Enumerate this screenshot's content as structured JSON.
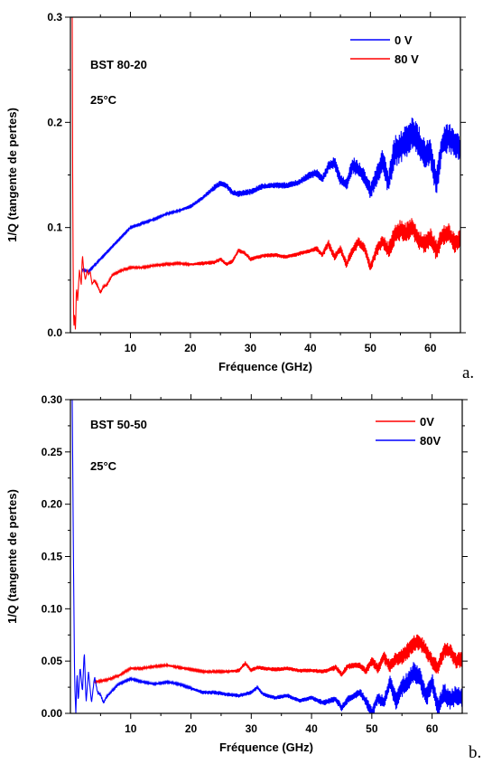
{
  "chart_data": [
    {
      "type": "line",
      "panel_label": "a.",
      "xlabel": "Fréquence (GHz)",
      "ylabel": "1/Q (tangente de pertes)",
      "xlim": [
        0,
        65
      ],
      "ylim": [
        0,
        0.3
      ],
      "x_ticks": [
        10,
        20,
        30,
        40,
        50,
        60
      ],
      "x_tick_labels": [
        "10",
        "20",
        "30",
        "40",
        "50",
        "60"
      ],
      "y_ticks": [
        0,
        0.1,
        0.2,
        0.3
      ],
      "y_tick_labels": [
        "0.0",
        "0.1",
        "0.2",
        "0.3"
      ],
      "annotations": [
        "BST 80-20",
        "25°C"
      ],
      "legend_position": "top-right",
      "series": [
        {
          "name": "0 V",
          "color": "#0000ff",
          "x": [
            2,
            3,
            4,
            5,
            6,
            8,
            10,
            12,
            14,
            16,
            18,
            20,
            22,
            24,
            25,
            26,
            27,
            28,
            30,
            32,
            34,
            36,
            38,
            40,
            41,
            42,
            43,
            44,
            45,
            46,
            47,
            48,
            49,
            50,
            51,
            52,
            53,
            54,
            55,
            56,
            57,
            58,
            59,
            60,
            61,
            62,
            63,
            64,
            65
          ],
          "y": [
            0.06,
            0.058,
            0.064,
            0.07,
            0.076,
            0.088,
            0.1,
            0.104,
            0.108,
            0.113,
            0.116,
            0.12,
            0.128,
            0.138,
            0.142,
            0.14,
            0.133,
            0.132,
            0.134,
            0.139,
            0.14,
            0.14,
            0.143,
            0.15,
            0.152,
            0.146,
            0.158,
            0.162,
            0.146,
            0.14,
            0.16,
            0.155,
            0.148,
            0.135,
            0.148,
            0.165,
            0.142,
            0.172,
            0.176,
            0.182,
            0.19,
            0.182,
            0.17,
            0.172,
            0.142,
            0.18,
            0.186,
            0.18,
            0.175
          ],
          "noise": [
            0.001,
            0.001,
            0.001,
            0.001,
            0.001,
            0.001,
            0.001,
            0.001,
            0.001,
            0.001,
            0.001,
            0.002,
            0.002,
            0.003,
            0.003,
            0.003,
            0.003,
            0.003,
            0.003,
            0.003,
            0.003,
            0.003,
            0.003,
            0.004,
            0.004,
            0.004,
            0.005,
            0.006,
            0.006,
            0.006,
            0.008,
            0.008,
            0.008,
            0.008,
            0.01,
            0.012,
            0.012,
            0.015,
            0.016,
            0.016,
            0.016,
            0.016,
            0.014,
            0.014,
            0.014,
            0.014,
            0.014,
            0.014,
            0.014
          ]
        },
        {
          "name": "80 V",
          "color": "#ff0000",
          "x": [
            0.3,
            0.4,
            0.55,
            0.7,
            0.85,
            1.0,
            1.2,
            1.5,
            1.8,
            2.0,
            2.2,
            2.5,
            2.8,
            3.0,
            3.3,
            3.6,
            4.0,
            4.5,
            5.0,
            5.5,
            6.0,
            7.0,
            8.0,
            10,
            12,
            14,
            16,
            18,
            20,
            22,
            24,
            25,
            26,
            27,
            28,
            29,
            30,
            32,
            34,
            36,
            38,
            40,
            41,
            42,
            43,
            44,
            45,
            46,
            47,
            48,
            49,
            50,
            51,
            52,
            53,
            54,
            55,
            56,
            57,
            58,
            59,
            60,
            61,
            62,
            63,
            64,
            65
          ],
          "y": [
            0.3,
            0.1,
            0.0,
            0.02,
            0.0,
            0.045,
            0.03,
            0.06,
            0.045,
            0.075,
            0.06,
            0.05,
            0.06,
            0.055,
            0.058,
            0.046,
            0.05,
            0.045,
            0.038,
            0.044,
            0.045,
            0.055,
            0.058,
            0.062,
            0.062,
            0.064,
            0.065,
            0.066,
            0.065,
            0.066,
            0.067,
            0.07,
            0.065,
            0.068,
            0.078,
            0.076,
            0.07,
            0.073,
            0.074,
            0.072,
            0.075,
            0.078,
            0.08,
            0.074,
            0.085,
            0.072,
            0.08,
            0.065,
            0.078,
            0.086,
            0.08,
            0.062,
            0.078,
            0.087,
            0.078,
            0.092,
            0.098,
            0.095,
            0.101,
            0.088,
            0.085,
            0.09,
            0.078,
            0.092,
            0.095,
            0.085,
            0.088
          ],
          "noise": [
            0,
            0,
            0,
            0,
            0,
            0,
            0,
            0,
            0,
            0,
            0,
            0,
            0,
            0,
            0,
            0,
            0.001,
            0.001,
            0.001,
            0.001,
            0.001,
            0.001,
            0.001,
            0.001,
            0.001,
            0.001,
            0.001,
            0.001,
            0.001,
            0.002,
            0.002,
            0.002,
            0.002,
            0.002,
            0.002,
            0.002,
            0.002,
            0.002,
            0.002,
            0.002,
            0.002,
            0.002,
            0.003,
            0.003,
            0.004,
            0.004,
            0.004,
            0.004,
            0.005,
            0.005,
            0.005,
            0.005,
            0.006,
            0.007,
            0.008,
            0.01,
            0.01,
            0.01,
            0.01,
            0.01,
            0.01,
            0.01,
            0.01,
            0.01,
            0.01,
            0.01,
            0.01
          ]
        }
      ]
    },
    {
      "type": "line",
      "panel_label": "b.",
      "xlabel": "Fréquence (GHz)",
      "ylabel": "1/Q (tangente de pertes)",
      "xlim": [
        0,
        65
      ],
      "ylim": [
        0,
        0.3
      ],
      "x_ticks": [
        10,
        20,
        30,
        40,
        50,
        60
      ],
      "x_tick_labels": [
        "10",
        "20",
        "30",
        "40",
        "50",
        "60"
      ],
      "y_ticks": [
        0,
        0.05,
        0.1,
        0.15,
        0.2,
        0.25,
        0.3
      ],
      "y_tick_labels": [
        "0.00",
        "0.05",
        "0.10",
        "0.15",
        "0.20",
        "0.25",
        "0.30"
      ],
      "annotations": [
        "BST 50-50",
        "25°C"
      ],
      "legend_position": "top-right",
      "series": [
        {
          "name": "0V",
          "color": "#ff0000",
          "x": [
            4,
            6,
            8,
            10,
            12,
            14,
            16,
            18,
            20,
            22,
            24,
            26,
            28,
            29,
            30,
            31,
            32,
            34,
            36,
            38,
            40,
            42,
            44,
            45,
            46,
            48,
            49,
            50,
            51,
            52,
            53,
            54,
            55,
            56,
            57,
            58,
            59,
            60,
            61,
            62,
            63,
            64,
            65
          ],
          "y": [
            0.03,
            0.032,
            0.036,
            0.043,
            0.043,
            0.045,
            0.046,
            0.044,
            0.042,
            0.04,
            0.04,
            0.04,
            0.041,
            0.048,
            0.041,
            0.044,
            0.043,
            0.042,
            0.043,
            0.041,
            0.041,
            0.04,
            0.044,
            0.037,
            0.045,
            0.046,
            0.04,
            0.05,
            0.043,
            0.054,
            0.045,
            0.052,
            0.054,
            0.06,
            0.067,
            0.068,
            0.06,
            0.05,
            0.044,
            0.06,
            0.06,
            0.05,
            0.052
          ],
          "noise": [
            0.001,
            0.001,
            0.001,
            0.001,
            0.001,
            0.001,
            0.001,
            0.001,
            0.001,
            0.001,
            0.001,
            0.001,
            0.002,
            0.002,
            0.002,
            0.002,
            0.002,
            0.002,
            0.002,
            0.002,
            0.002,
            0.002,
            0.003,
            0.003,
            0.003,
            0.003,
            0.004,
            0.005,
            0.005,
            0.006,
            0.006,
            0.007,
            0.008,
            0.008,
            0.008,
            0.008,
            0.008,
            0.008,
            0.008,
            0.008,
            0.008,
            0.008,
            0.008
          ]
        },
        {
          "name": "80V",
          "color": "#0000ff",
          "x": [
            0.3,
            0.5,
            0.7,
            0.9,
            1.1,
            1.3,
            1.6,
            2.0,
            2.3,
            2.6,
            3.0,
            3.5,
            4.0,
            4.5,
            5.0,
            5.5,
            6.0,
            7.0,
            8.0,
            10,
            12,
            14,
            16,
            18,
            20,
            22,
            24,
            26,
            28,
            30,
            31,
            32,
            34,
            36,
            38,
            40,
            42,
            44,
            45,
            46,
            48,
            49,
            50,
            51,
            52,
            53,
            54,
            55,
            56,
            57,
            58,
            59,
            60,
            61,
            62,
            63,
            64,
            65
          ],
          "y": [
            0.3,
            0.15,
            0.03,
            0.0,
            0.04,
            0.01,
            0.045,
            0.02,
            0.06,
            0.01,
            0.04,
            0.01,
            0.035,
            0.02,
            0.018,
            0.01,
            0.016,
            0.022,
            0.028,
            0.033,
            0.03,
            0.028,
            0.03,
            0.028,
            0.024,
            0.02,
            0.02,
            0.018,
            0.017,
            0.02,
            0.025,
            0.018,
            0.015,
            0.017,
            0.012,
            0.015,
            0.01,
            0.014,
            0.005,
            0.013,
            0.02,
            0.012,
            0.0,
            0.015,
            0.01,
            0.03,
            0.012,
            0.025,
            0.03,
            0.04,
            0.034,
            0.015,
            0.03,
            0.005,
            0.02,
            0.012,
            0.018,
            0.015
          ],
          "noise": [
            0,
            0,
            0,
            0,
            0,
            0,
            0,
            0,
            0,
            0,
            0,
            0,
            0.001,
            0.001,
            0.001,
            0.001,
            0.001,
            0.001,
            0.001,
            0.001,
            0.001,
            0.001,
            0.001,
            0.001,
            0.001,
            0.002,
            0.002,
            0.002,
            0.002,
            0.002,
            0.002,
            0.002,
            0.002,
            0.002,
            0.002,
            0.002,
            0.003,
            0.003,
            0.004,
            0.004,
            0.004,
            0.005,
            0.006,
            0.006,
            0.007,
            0.008,
            0.009,
            0.01,
            0.01,
            0.01,
            0.01,
            0.01,
            0.01,
            0.01,
            0.01,
            0.01,
            0.01,
            0.01
          ]
        }
      ]
    }
  ]
}
